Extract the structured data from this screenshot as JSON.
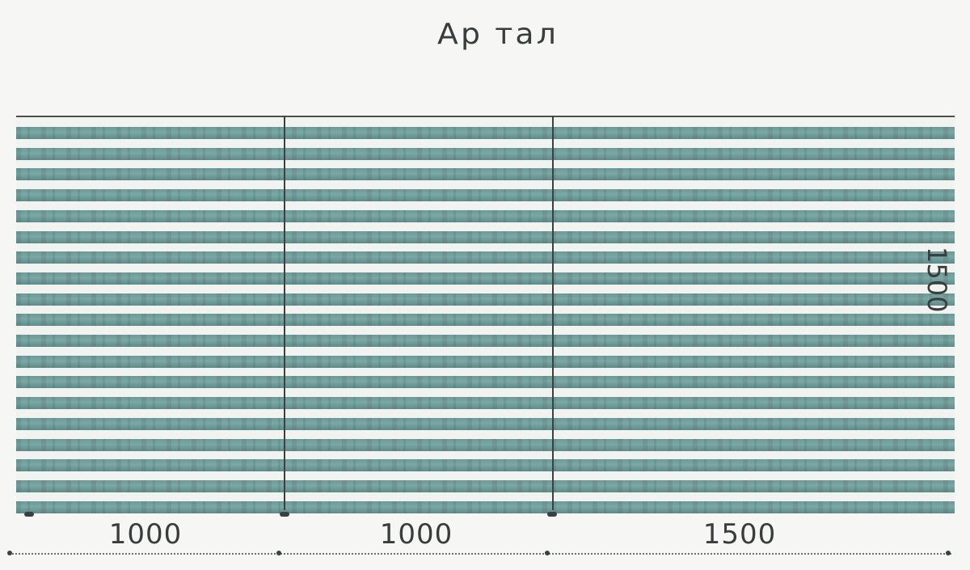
{
  "diagram": {
    "title": "Ар тал",
    "dimensions": {
      "bottom": [
        "1000",
        "1000",
        "1500"
      ],
      "side": "1500"
    },
    "slat_count": 19,
    "colors": {
      "slat": "#6d9a98",
      "gap": "#f1f3f1",
      "line": "#3c4040"
    }
  }
}
